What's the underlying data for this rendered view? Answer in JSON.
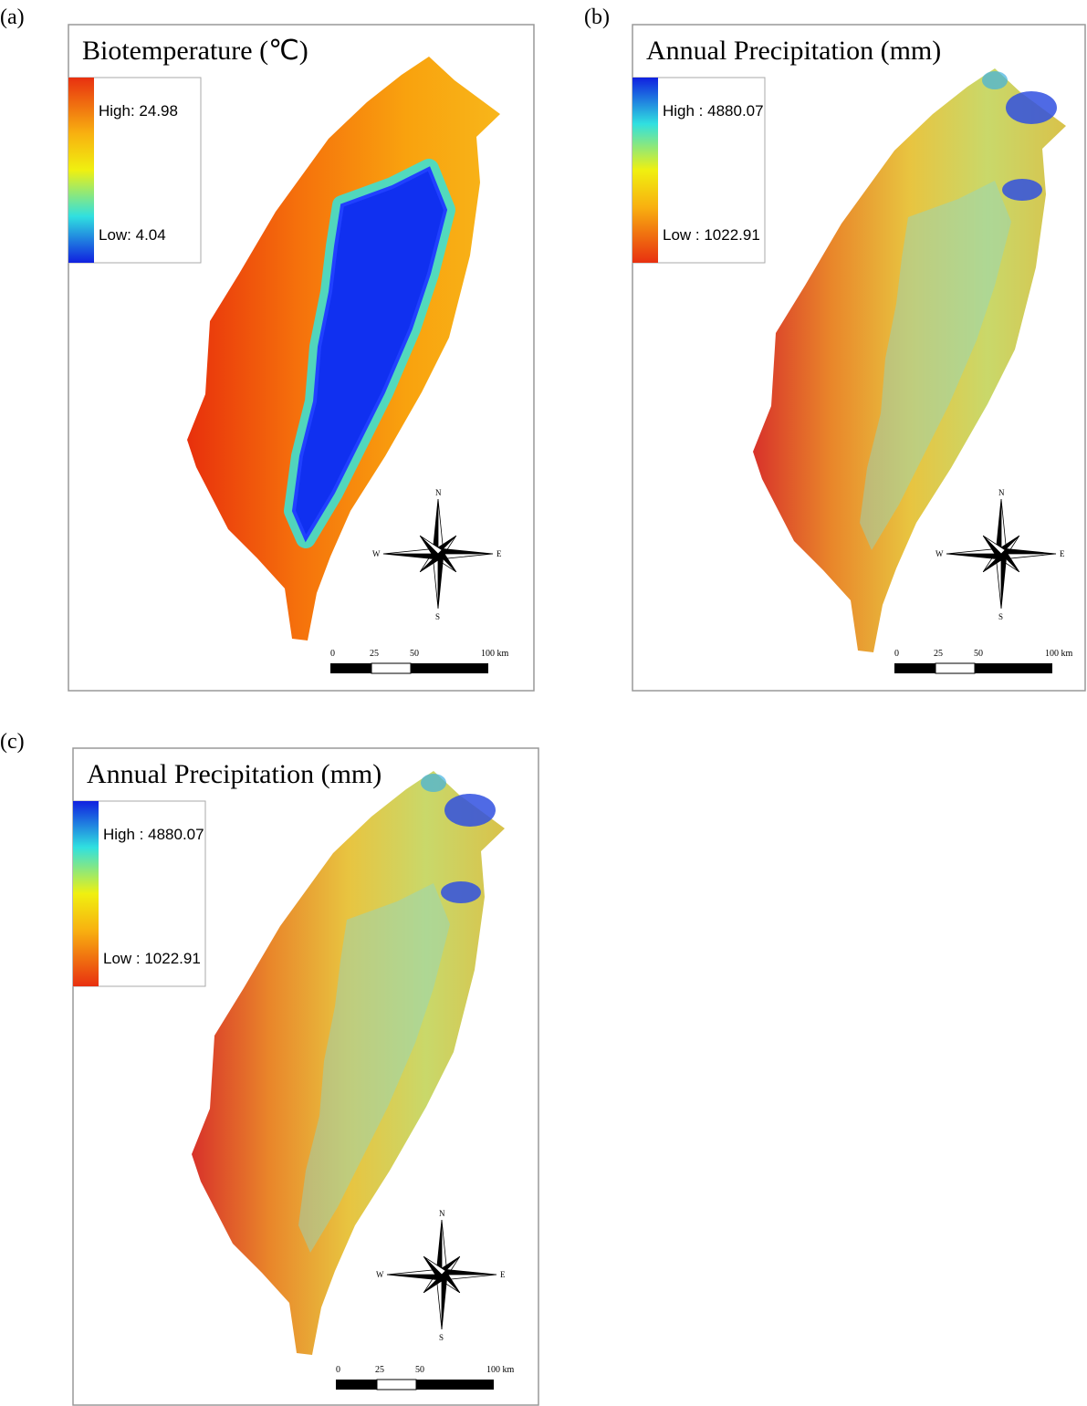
{
  "panels": [
    {
      "label": "(a)",
      "title": "Biotemperature (℃)",
      "legend": {
        "high": "High: 24.98",
        "low": "Low:  4.04"
      },
      "compass": {
        "n": "N",
        "s": "S",
        "w": "W",
        "e": "E"
      },
      "scale": [
        "0",
        "25",
        "50",
        "100 km"
      ]
    },
    {
      "label": "(b)",
      "title": "Annual Precipitation (mm)",
      "legend": {
        "high": "High : 4880.07",
        "low": "Low : 1022.91"
      },
      "compass": {
        "n": "N",
        "s": "S",
        "w": "W",
        "e": "E"
      },
      "scale": [
        "0",
        "25",
        "50",
        "100 km"
      ]
    },
    {
      "label": "(c)",
      "title": "Annual Precipitation (mm)",
      "legend": {
        "high": "High : 4880.07",
        "low": "Low : 1022.91"
      },
      "compass": {
        "n": "N",
        "s": "S",
        "w": "W",
        "e": "E"
      },
      "scale": [
        "0",
        "25",
        "50",
        "100 km"
      ]
    }
  ]
}
